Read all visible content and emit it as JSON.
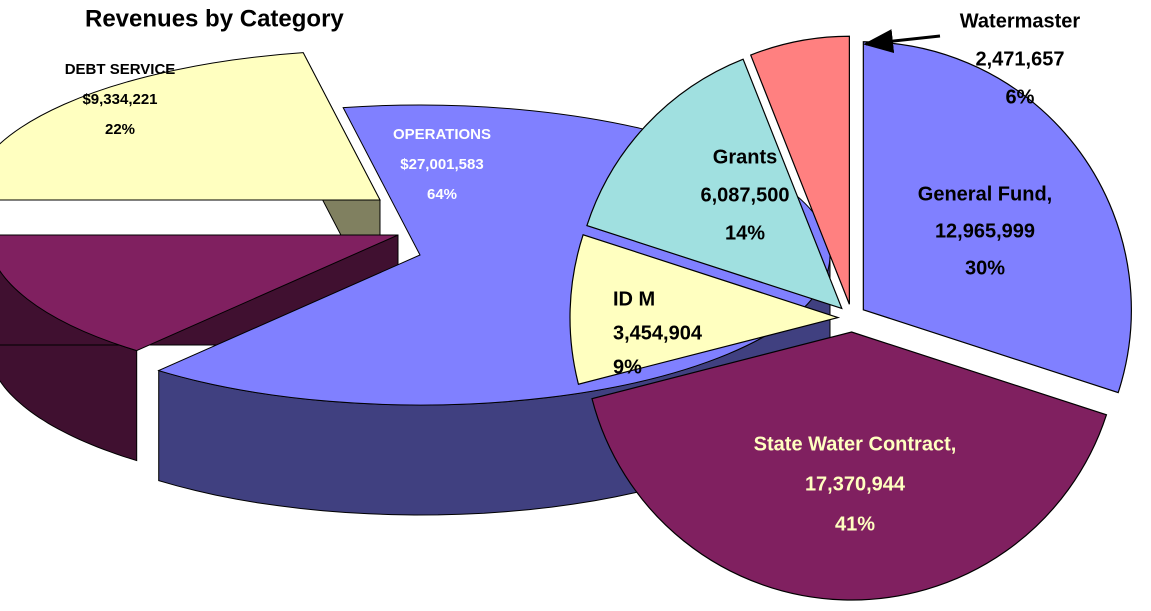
{
  "chart_data": [
    {
      "type": "pie3d",
      "categories": [
        "DEBT SERVICE",
        "OPERATIONS",
        null
      ],
      "amount_labels": [
        "$9,334,221",
        "$27,001,583",
        null
      ],
      "values": [
        22,
        64,
        14
      ],
      "value_labels": [
        "22%",
        "64%",
        null
      ],
      "colors": [
        "#ffffc0",
        "#8080ff",
        "#802060"
      ],
      "side_colors": [
        "#808060",
        "#404080",
        "#401030"
      ],
      "label_colors": [
        "#000000",
        "#ffffff",
        "#ffffff"
      ]
    },
    {
      "type": "pie",
      "title": "Revenues by Category",
      "categories": [
        "General Fund,",
        "State Water Contract,",
        "ID M",
        "Grants",
        "Watermaster"
      ],
      "amount_labels": [
        "12,965,999",
        "17,370,944",
        "3,454,904",
        "6,087,500",
        "2,471,657"
      ],
      "values": [
        30,
        41,
        9,
        14,
        6
      ],
      "value_labels": [
        "30%",
        "41%",
        "9%",
        "14%",
        "6%"
      ],
      "colors": [
        "#8080ff",
        "#802060",
        "#ffffc0",
        "#a0e0e0",
        "#ff8080"
      ],
      "label_colors": [
        "#000000",
        "#ffffc0",
        "#000000",
        "#000000",
        "#000000"
      ]
    }
  ]
}
